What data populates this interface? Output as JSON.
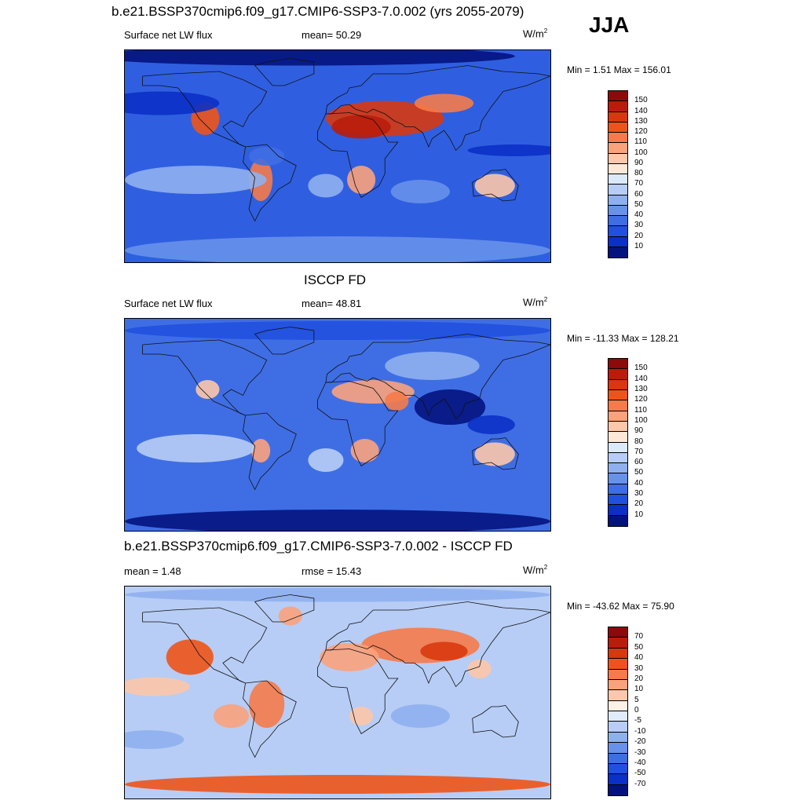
{
  "page": {
    "title": "b.e21.BSSP370cmip6.f09_g17.CMIP6-SSP3-7.0.002 (yrs 2055-2079)",
    "season": "JJA"
  },
  "panels": [
    {
      "title": "",
      "left_text": "Surface net LW flux",
      "mid_text": "mean=  50.29",
      "unit": "W/m",
      "unit_sup": "2",
      "minmax": "Min =   1.51 Max = 156.01",
      "colorbar": {
        "labels": [
          "150",
          "140",
          "130",
          "120",
          "110",
          "100",
          "90",
          "80",
          "70",
          "60",
          "50",
          "40",
          "30",
          "20",
          "10"
        ],
        "colors": [
          "#8c0a0a",
          "#b81d0b",
          "#d8380f",
          "#ee5419",
          "#f57b4a",
          "#f9a27c",
          "#fcc7aa",
          "#fde8d8",
          "#dce9fb",
          "#b7cdf5",
          "#8fb0ef",
          "#6891ea",
          "#3f6ee4",
          "#2050de",
          "#0b30c7",
          "#03137e"
        ]
      }
    },
    {
      "title": "ISCCP FD",
      "left_text": "Surface net LW flux",
      "mid_text": "mean=  48.81",
      "unit": "W/m",
      "unit_sup": "2",
      "minmax": "Min = -11.33 Max = 128.21",
      "colorbar": {
        "labels": [
          "150",
          "140",
          "130",
          "120",
          "110",
          "100",
          "90",
          "80",
          "70",
          "60",
          "50",
          "40",
          "30",
          "20",
          "10"
        ],
        "colors": [
          "#8c0a0a",
          "#b81d0b",
          "#d8380f",
          "#ee5419",
          "#f57b4a",
          "#f9a27c",
          "#fcc7aa",
          "#fde8d8",
          "#dce9fb",
          "#b7cdf5",
          "#8fb0ef",
          "#6891ea",
          "#3f6ee4",
          "#2050de",
          "#0b30c7",
          "#03137e"
        ]
      }
    },
    {
      "title": "b.e21.BSSP370cmip6.f09_g17.CMIP6-SSP3-7.0.002 - ISCCP FD",
      "left_text": "mean =   1.48",
      "mid_text": "rmse =  15.43",
      "unit": "W/m",
      "unit_sup": "2",
      "minmax": "Min = -43.62 Max =  75.90",
      "colorbar": {
        "labels": [
          "70",
          "50",
          "40",
          "30",
          "20",
          "10",
          "5",
          "0",
          "-5",
          "-10",
          "-20",
          "-30",
          "-40",
          "-50",
          "-70"
        ],
        "colors": [
          "#8c0a0a",
          "#b81d0b",
          "#d8380f",
          "#ee5419",
          "#f57b4a",
          "#f9a27c",
          "#fcc7aa",
          "#fdf0e4",
          "#e0ebfb",
          "#b7cdf5",
          "#8fb0ef",
          "#6891ea",
          "#3f6ee4",
          "#2050de",
          "#0b30c7",
          "#03137e"
        ]
      }
    }
  ],
  "maps": [
    {
      "background": "#2f5fe0",
      "blobs": [
        {
          "lon": -30,
          "lat": 85,
          "rx": 180,
          "ry": 8,
          "color": "#03137e"
        },
        {
          "lon": 0,
          "lat": -80,
          "rx": 180,
          "ry": 12,
          "color": "#6891ea"
        },
        {
          "lon": 40,
          "lat": 32,
          "rx": 50,
          "ry": 15,
          "color": "#d8380f"
        },
        {
          "lon": 20,
          "lat": 25,
          "rx": 25,
          "ry": 10,
          "color": "#b81d0b"
        },
        {
          "lon": 90,
          "lat": 45,
          "rx": 25,
          "ry": 8,
          "color": "#f57b4a"
        },
        {
          "lon": 20,
          "lat": -20,
          "rx": 12,
          "ry": 12,
          "color": "#f9a27c"
        },
        {
          "lon": 133,
          "lat": -25,
          "rx": 17,
          "ry": 10,
          "color": "#fcc7aa"
        },
        {
          "lon": -112,
          "lat": 32,
          "rx": 12,
          "ry": 14,
          "color": "#ee5419"
        },
        {
          "lon": -65,
          "lat": -20,
          "rx": 10,
          "ry": 18,
          "color": "#f57b4a"
        },
        {
          "lon": -150,
          "lat": 45,
          "rx": 50,
          "ry": 10,
          "color": "#0b30c7"
        },
        {
          "lon": -120,
          "lat": -20,
          "rx": 60,
          "ry": 12,
          "color": "#8fb0ef"
        },
        {
          "lon": -10,
          "lat": -25,
          "rx": 15,
          "ry": 10,
          "color": "#8fb0ef"
        },
        {
          "lon": 70,
          "lat": -30,
          "rx": 25,
          "ry": 10,
          "color": "#6891ea"
        },
        {
          "lon": 150,
          "lat": 5,
          "rx": 40,
          "ry": 5,
          "color": "#0b30c7"
        },
        {
          "lon": -60,
          "lat": 0,
          "rx": 15,
          "ry": 8,
          "color": "#3f6ee4"
        }
      ]
    },
    {
      "background": "#3f6ee4",
      "blobs": [
        {
          "lon": 0,
          "lat": -82,
          "rx": 180,
          "ry": 10,
          "color": "#03137e"
        },
        {
          "lon": 0,
          "lat": 80,
          "rx": 180,
          "ry": 8,
          "color": "#2050de"
        },
        {
          "lon": 95,
          "lat": 15,
          "rx": 30,
          "ry": 15,
          "color": "#03137e"
        },
        {
          "lon": 130,
          "lat": 0,
          "rx": 20,
          "ry": 8,
          "color": "#0b30c7"
        },
        {
          "lon": 30,
          "lat": 28,
          "rx": 35,
          "ry": 10,
          "color": "#f9a27c"
        },
        {
          "lon": 50,
          "lat": 20,
          "rx": 10,
          "ry": 8,
          "color": "#f57b4a"
        },
        {
          "lon": 23,
          "lat": -22,
          "rx": 12,
          "ry": 10,
          "color": "#f9a27c"
        },
        {
          "lon": 133,
          "lat": -25,
          "rx": 17,
          "ry": 10,
          "color": "#fcc7aa"
        },
        {
          "lon": -110,
          "lat": 30,
          "rx": 10,
          "ry": 8,
          "color": "#fcc7aa"
        },
        {
          "lon": -65,
          "lat": -22,
          "rx": 8,
          "ry": 10,
          "color": "#f9a27c"
        },
        {
          "lon": -120,
          "lat": -20,
          "rx": 50,
          "ry": 12,
          "color": "#b7cdf5"
        },
        {
          "lon": 80,
          "lat": 50,
          "rx": 40,
          "ry": 12,
          "color": "#8fb0ef"
        },
        {
          "lon": -10,
          "lat": -30,
          "rx": 15,
          "ry": 10,
          "color": "#b7cdf5"
        }
      ]
    },
    {
      "background": "#b7cdf5",
      "blobs": [
        {
          "lon": 0,
          "lat": -78,
          "rx": 180,
          "ry": 8,
          "color": "#ee5419"
        },
        {
          "lon": 0,
          "lat": 83,
          "rx": 180,
          "ry": 6,
          "color": "#8fb0ef"
        },
        {
          "lon": 70,
          "lat": 40,
          "rx": 50,
          "ry": 15,
          "color": "#f57b4a"
        },
        {
          "lon": 90,
          "lat": 35,
          "rx": 20,
          "ry": 8,
          "color": "#d8380f"
        },
        {
          "lon": 10,
          "lat": 30,
          "rx": 25,
          "ry": 12,
          "color": "#f9a27c"
        },
        {
          "lon": -125,
          "lat": 30,
          "rx": 20,
          "ry": 15,
          "color": "#ee5419"
        },
        {
          "lon": -60,
          "lat": -10,
          "rx": 15,
          "ry": 20,
          "color": "#f57b4a"
        },
        {
          "lon": -90,
          "lat": -20,
          "rx": 15,
          "ry": 10,
          "color": "#f9a27c"
        },
        {
          "lon": -40,
          "lat": 65,
          "rx": 10,
          "ry": 8,
          "color": "#f9a27c"
        },
        {
          "lon": -155,
          "lat": 5,
          "rx": 30,
          "ry": 8,
          "color": "#fcc7aa"
        },
        {
          "lon": 20,
          "lat": -20,
          "rx": 10,
          "ry": 8,
          "color": "#fcc7aa"
        },
        {
          "lon": 70,
          "lat": -20,
          "rx": 25,
          "ry": 10,
          "color": "#8fb0ef"
        },
        {
          "lon": -160,
          "lat": -40,
          "rx": 30,
          "ry": 8,
          "color": "#8fb0ef"
        },
        {
          "lon": 120,
          "lat": 20,
          "rx": 10,
          "ry": 8,
          "color": "#fcc7aa"
        }
      ]
    }
  ]
}
